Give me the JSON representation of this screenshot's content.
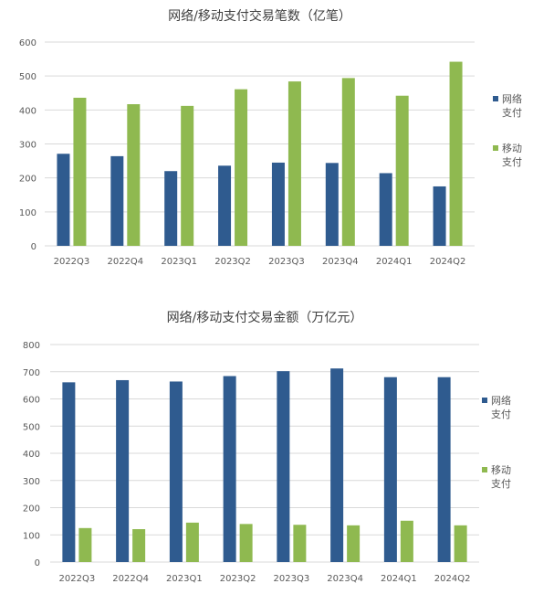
{
  "chart_data": [
    {
      "type": "bar",
      "title": "网络/移动支付交易笔数（亿笔）",
      "categories": [
        "2022Q3",
        "2022Q4",
        "2023Q1",
        "2023Q2",
        "2023Q3",
        "2023Q4",
        "2024Q1",
        "2024Q2"
      ],
      "series": [
        {
          "name": "网络支付",
          "values": [
            271,
            264,
            220,
            236,
            245,
            244,
            214,
            175
          ]
        },
        {
          "name": "移动支付",
          "values": [
            436,
            417,
            412,
            461,
            484,
            494,
            442,
            542
          ]
        }
      ],
      "ylim": [
        0,
        600
      ],
      "yticks": [
        0,
        100,
        200,
        300,
        400,
        500,
        600
      ],
      "xlabel": "",
      "ylabel": "",
      "grid": true,
      "legend_position": "right"
    },
    {
      "type": "bar",
      "title": "网络/移动支付交易金额（万亿元）",
      "categories": [
        "2022Q3",
        "2022Q4",
        "2023Q1",
        "2023Q2",
        "2023Q3",
        "2023Q4",
        "2024Q1",
        "2024Q2"
      ],
      "series": [
        {
          "name": "网络支付",
          "values": [
            661,
            669,
            664,
            684,
            702,
            712,
            680,
            680
          ]
        },
        {
          "name": "移动支付",
          "values": [
            125,
            121,
            145,
            140,
            137,
            135,
            152,
            135
          ]
        }
      ],
      "ylim": [
        0,
        800
      ],
      "yticks": [
        0,
        100,
        200,
        300,
        400,
        500,
        600,
        700,
        800
      ],
      "xlabel": "",
      "ylabel": "",
      "grid": true,
      "legend_position": "right"
    }
  ],
  "colors": {
    "网络支付": "#2f5b8f",
    "移动支付": "#8fb950",
    "grid": "#d9d9d9",
    "axis_text": "#595959"
  }
}
